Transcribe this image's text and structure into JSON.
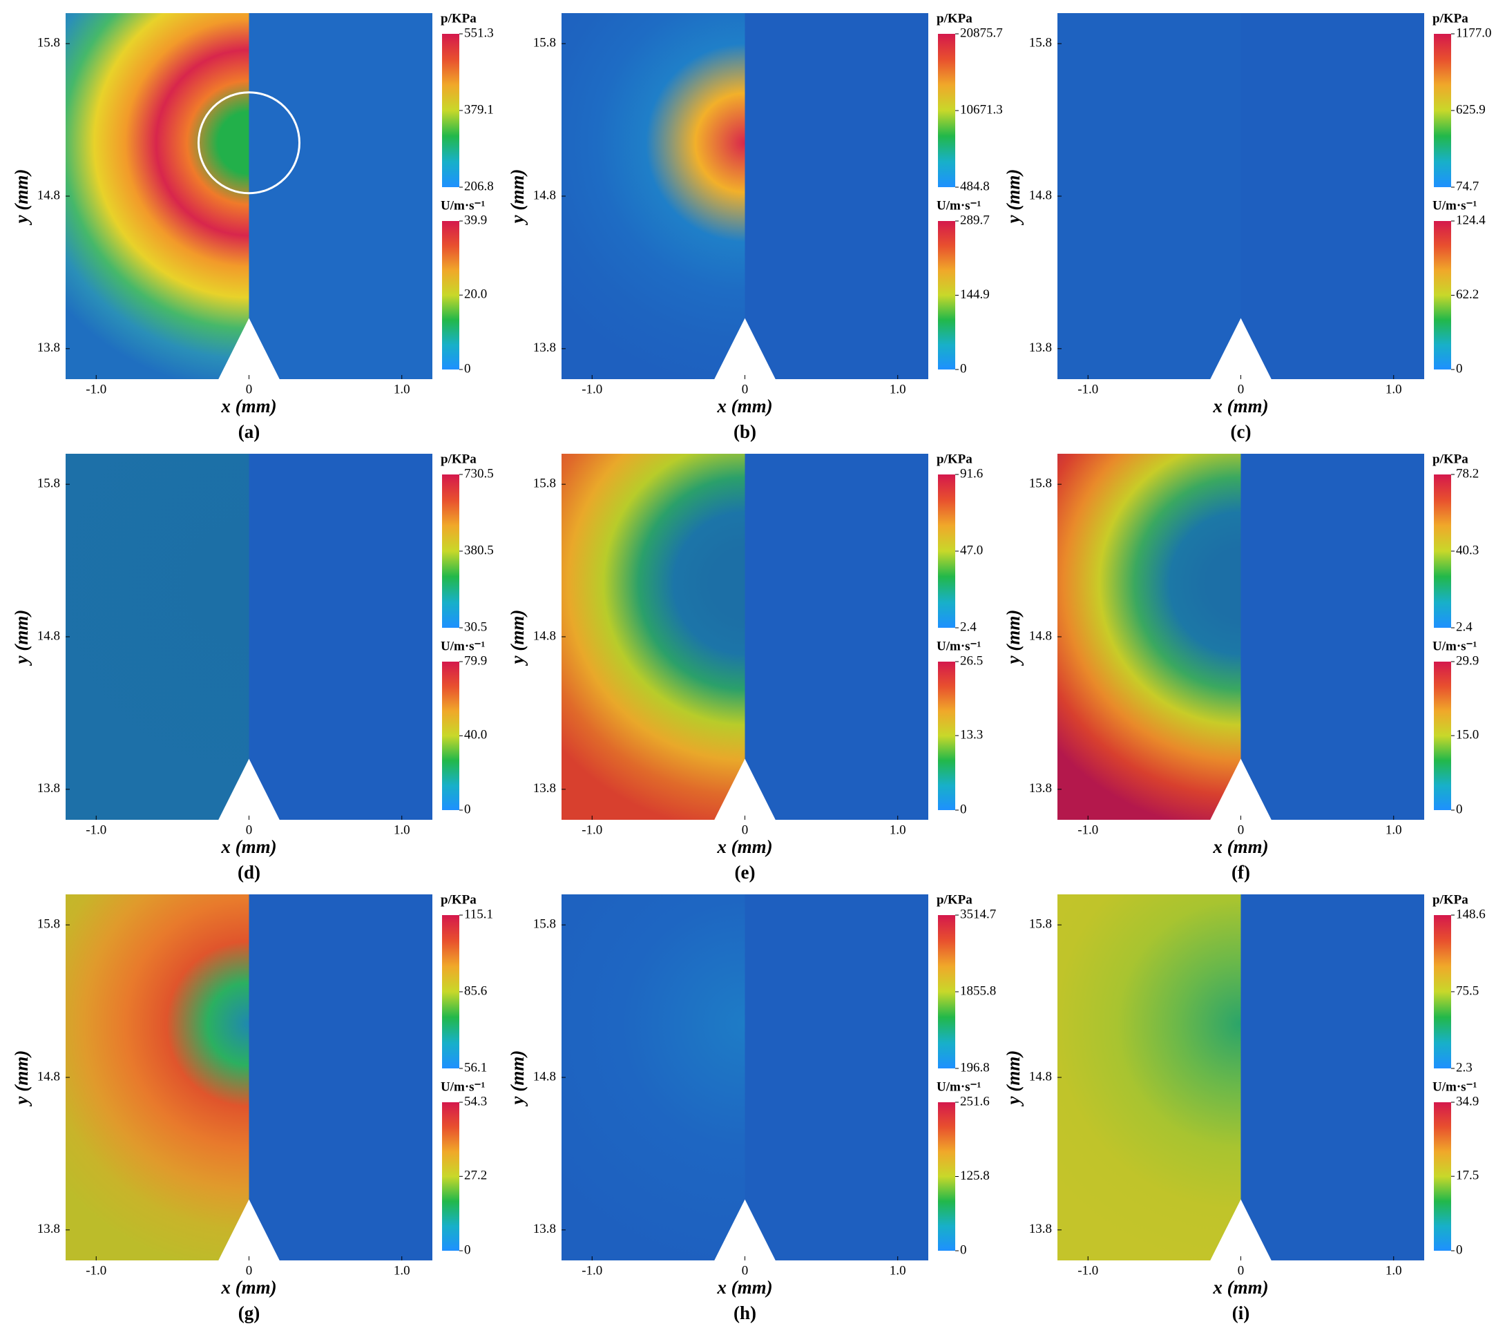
{
  "chart_data": [
    {
      "type": "contour",
      "label": "(a)",
      "xlabel": "x (mm)",
      "ylabel": "y (mm)",
      "xlim": [
        -1.2,
        1.2
      ],
      "ylim": [
        13.6,
        16.0
      ],
      "xticks": [
        {
          "value": -1,
          "label": "-1.0"
        },
        0,
        {
          "value": 1,
          "label": "1.0"
        }
      ],
      "yticks": [
        13.8,
        14.8,
        15.8
      ],
      "colorbars": [
        {
          "title": "p/KPa",
          "clim": [
            206.8,
            551.3
          ],
          "ticks": [
            206.8,
            379.1,
            551.3
          ]
        },
        {
          "title": "U/m·s⁻¹",
          "clim": [
            0,
            39.9
          ],
          "ticks": [
            0,
            {
              "value": 20,
              "label": "20.0"
            },
            39.9
          ]
        }
      ],
      "left_colors": [
        "#22b04a",
        "#22b04a",
        "#f07a2a",
        "#d8264c",
        "#f29a2a",
        "#e8d22a",
        "#46b86a",
        "#2a8fb8",
        "#1f6fc0"
      ],
      "right_color": "#1f6ac4"
    },
    {
      "type": "contour",
      "label": "(b)",
      "xlabel": "x (mm)",
      "ylabel": "y (mm)",
      "xlim": [
        -1.2,
        1.2
      ],
      "ylim": [
        13.6,
        16.0
      ],
      "xticks": [
        {
          "value": -1,
          "label": "-1.0"
        },
        0,
        {
          "value": 1,
          "label": "1.0"
        }
      ],
      "yticks": [
        13.8,
        14.8,
        15.8
      ],
      "colorbars": [
        {
          "title": "p/KPa",
          "clim": [
            484.8,
            20875.7
          ],
          "ticks": [
            484.8,
            10671.3,
            20875.7
          ]
        },
        {
          "title": "U/m·s⁻¹",
          "clim": [
            0,
            289.7
          ],
          "ticks": [
            0,
            144.9,
            289.7
          ]
        }
      ],
      "left_colors": [
        "#d8264c",
        "#f2b02a",
        "#1f7fc8",
        "#1e6cc4",
        "#1e64c0",
        "#1e60bf"
      ],
      "right_color": "#1e5fbf"
    },
    {
      "type": "contour",
      "label": "(c)",
      "xlabel": "x (mm)",
      "ylabel": "y (mm)",
      "xlim": [
        -1.2,
        1.2
      ],
      "ylim": [
        13.6,
        16.0
      ],
      "xticks": [
        {
          "value": -1,
          "label": "-1.0"
        },
        0,
        {
          "value": 1,
          "label": "1.0"
        }
      ],
      "yticks": [
        13.8,
        14.8,
        15.8
      ],
      "colorbars": [
        {
          "title": "p/KPa",
          "clim": [
            74.7,
            1177
          ],
          "ticks": [
            74.7,
            625.9,
            {
              "value": 1177,
              "label": "1177.0"
            }
          ]
        },
        {
          "title": "U/m·s⁻¹",
          "clim": [
            0,
            124.4
          ],
          "ticks": [
            0,
            62.2,
            124.4
          ]
        }
      ],
      "left_colors": [
        "#1e62c0",
        "#1e62c0"
      ],
      "right_color": "#1e5fbf"
    },
    {
      "type": "contour",
      "label": "(d)",
      "xlabel": "x (mm)",
      "ylabel": "y (mm)",
      "xlim": [
        -1.2,
        1.2
      ],
      "ylim": [
        13.6,
        16.0
      ],
      "xticks": [
        {
          "value": -1,
          "label": "-1.0"
        },
        0,
        {
          "value": 1,
          "label": "1.0"
        }
      ],
      "yticks": [
        13.8,
        14.8,
        15.8
      ],
      "colorbars": [
        {
          "title": "p/KPa",
          "clim": [
            30.5,
            730.5
          ],
          "ticks": [
            30.5,
            380.5,
            730.5
          ]
        },
        {
          "title": "U/m·s⁻¹",
          "clim": [
            0,
            79.9
          ],
          "ticks": [
            0,
            {
              "value": 40,
              "label": "40.0"
            },
            79.9
          ]
        }
      ],
      "left_colors": [
        "#1c6fa6",
        "#1d70a8"
      ],
      "right_color": "#1e5fbf"
    },
    {
      "type": "contour",
      "label": "(e)",
      "xlabel": "x (mm)",
      "ylabel": "y (mm)",
      "xlim": [
        -1.2,
        1.2
      ],
      "ylim": [
        13.6,
        16.0
      ],
      "xticks": [
        {
          "value": -1,
          "label": "-1.0"
        },
        0,
        {
          "value": 1,
          "label": "1.0"
        }
      ],
      "yticks": [
        13.8,
        14.8,
        15.8
      ],
      "colorbars": [
        {
          "title": "p/KPa",
          "clim": [
            2.4,
            91.6
          ],
          "ticks": [
            2.4,
            {
              "value": 47,
              "label": "47.0"
            },
            91.6
          ]
        },
        {
          "title": "U/m·s⁻¹",
          "clim": [
            0,
            26.5
          ],
          "ticks": [
            0,
            13.3,
            26.5
          ]
        }
      ],
      "left_colors": [
        "#1c6fa6",
        "#1c6fa6",
        "#1c75a8",
        "#2ba06a",
        "#b8cc2a",
        "#e9a82a",
        "#e06a2a",
        "#d8402e"
      ],
      "right_color": "#1e5fbf"
    },
    {
      "type": "contour",
      "label": "(f)",
      "xlabel": "x (mm)",
      "ylabel": "y (mm)",
      "xlim": [
        -1.2,
        1.2
      ],
      "ylim": [
        13.6,
        16.0
      ],
      "xticks": [
        {
          "value": -1,
          "label": "-1.0"
        },
        0,
        {
          "value": 1,
          "label": "1.0"
        }
      ],
      "yticks": [
        13.8,
        14.8,
        15.8
      ],
      "colorbars": [
        {
          "title": "p/KPa",
          "clim": [
            2.4,
            78.2
          ],
          "ticks": [
            2.4,
            40.3,
            78.2
          ]
        },
        {
          "title": "U/m·s⁻¹",
          "clim": [
            0,
            29.9
          ],
          "ticks": [
            0,
            {
              "value": 15,
              "label": "15.0"
            },
            29.9
          ]
        }
      ],
      "left_colors": [
        "#1c6fa6",
        "#1c6fa6",
        "#1c78a6",
        "#3aa860",
        "#c8cc28",
        "#e98a2a",
        "#d8402e",
        "#b4184c"
      ],
      "right_color": "#1e5fbf"
    },
    {
      "type": "contour",
      "label": "(g)",
      "xlabel": "x (mm)",
      "ylabel": "y (mm)",
      "xlim": [
        -1.2,
        1.2
      ],
      "ylim": [
        13.6,
        16.0
      ],
      "xticks": [
        {
          "value": -1,
          "label": "-1.0"
        },
        0,
        {
          "value": 1,
          "label": "1.0"
        }
      ],
      "yticks": [
        13.8,
        14.8,
        15.8
      ],
      "colorbars": [
        {
          "title": "p/KPa",
          "clim": [
            56.1,
            115.1
          ],
          "ticks": [
            56.1,
            85.6,
            115.1
          ]
        },
        {
          "title": "U/m·s⁻¹",
          "clim": [
            0,
            54.3
          ],
          "ticks": [
            0,
            27.2,
            54.3
          ]
        }
      ],
      "left_colors": [
        "#1f88b0",
        "#2bb060",
        "#e0552c",
        "#e87a2c",
        "#e09a2c",
        "#c8b42a",
        "#bcbc2a"
      ],
      "right_color": "#1e5fbf"
    },
    {
      "type": "contour",
      "label": "(h)",
      "xlabel": "x (mm)",
      "ylabel": "y (mm)",
      "xlim": [
        -1.2,
        1.2
      ],
      "ylim": [
        13.6,
        16.0
      ],
      "xticks": [
        {
          "value": -1,
          "label": "-1.0"
        },
        0,
        {
          "value": 1,
          "label": "1.0"
        }
      ],
      "yticks": [
        13.8,
        14.8,
        15.8
      ],
      "colorbars": [
        {
          "title": "p/KPa",
          "clim": [
            196.8,
            3514.7
          ],
          "ticks": [
            196.8,
            1855.8,
            3514.7
          ]
        },
        {
          "title": "U/m·s⁻¹",
          "clim": [
            0,
            251.6
          ],
          "ticks": [
            0,
            125.8,
            251.6
          ]
        }
      ],
      "left_colors": [
        "#1e7cc6",
        "#1e66c2",
        "#1e60bf"
      ],
      "right_color": "#1e5fbf"
    },
    {
      "type": "contour",
      "label": "(i)",
      "xlabel": "x (mm)",
      "ylabel": "y (mm)",
      "xlim": [
        -1.2,
        1.2
      ],
      "ylim": [
        13.6,
        16.0
      ],
      "xticks": [
        {
          "value": -1,
          "label": "-1.0"
        },
        0,
        {
          "value": 1,
          "label": "1.0"
        }
      ],
      "yticks": [
        13.8,
        14.8,
        15.8
      ],
      "colorbars": [
        {
          "title": "p/KPa",
          "clim": [
            2.3,
            148.6
          ],
          "ticks": [
            2.3,
            75.5,
            148.6
          ]
        },
        {
          "title": "U/m·s⁻¹",
          "clim": [
            0,
            34.9
          ],
          "ticks": [
            0,
            17.5,
            34.9
          ]
        }
      ],
      "left_colors": [
        "#2aa46a",
        "#6ab84a",
        "#a8c430",
        "#c0c42a",
        "#c4c42a"
      ],
      "right_color": "#1e5fbf"
    }
  ]
}
